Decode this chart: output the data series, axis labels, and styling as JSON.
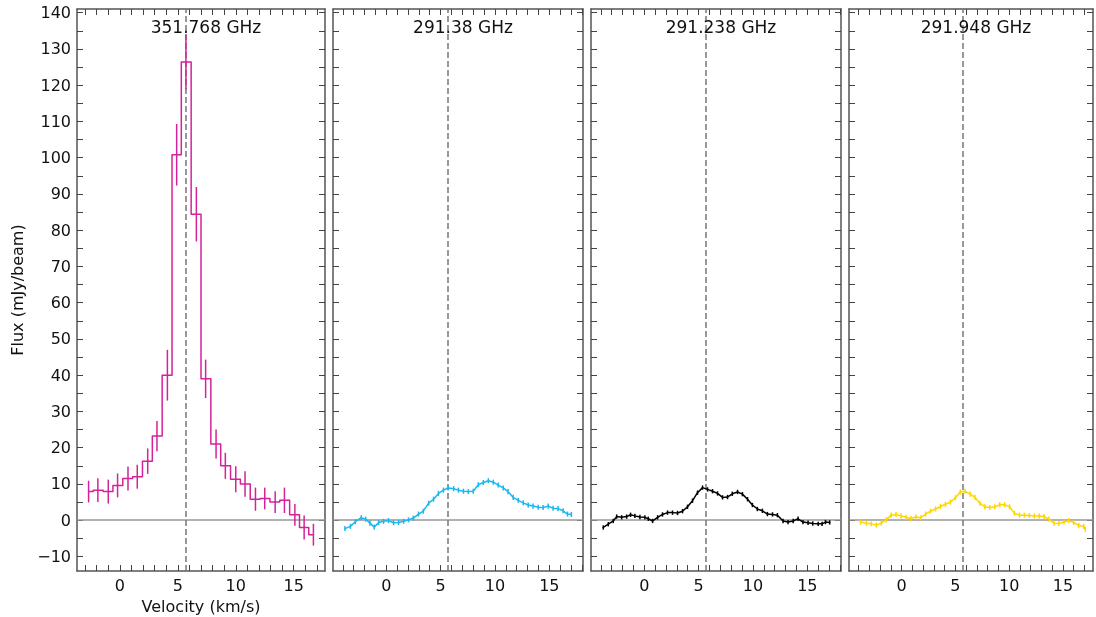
{
  "chart_data": [
    {
      "type": "step",
      "title": "351.768 GHz",
      "xlabel": "Velocity (km/s)",
      "ylabel": "Flux (mJy/beam)",
      "color": "#d4239a",
      "x": [
        -2.7,
        -1.9,
        -1.0,
        -0.2,
        0.7,
        1.5,
        2.4,
        3.2,
        4.1,
        4.9,
        5.7,
        6.6,
        7.4,
        8.3,
        9.1,
        10.0,
        10.8,
        11.7,
        12.5,
        13.4,
        14.2,
        15.1,
        15.9,
        16.7
      ],
      "values": [
        7.9,
        8.3,
        7.9,
        9.6,
        11.5,
        12,
        16.3,
        23.2,
        40,
        100.8,
        126.4,
        84.4,
        39,
        21,
        15,
        11.3,
        10,
        5.8,
        6,
        5,
        5.5,
        1.5,
        -2,
        -4
      ],
      "errors": [
        3,
        3.3,
        3.3,
        3.3,
        3.3,
        3.3,
        3.5,
        4.2,
        7,
        8.5,
        7.5,
        7.5,
        5.3,
        4,
        3.6,
        3.6,
        3.5,
        3.2,
        3,
        3,
        3.5,
        3,
        3.3,
        3
      ],
      "xlim": [
        -3.7,
        17.7
      ],
      "xticks": [
        {
          "value": -3,
          "label": null
        },
        {
          "value": -2,
          "label": null
        },
        {
          "value": -1,
          "label": null
        },
        0,
        {
          "value": 1,
          "label": null
        },
        {
          "value": 2,
          "label": null
        },
        {
          "value": 3,
          "label": null
        },
        {
          "value": 4,
          "label": null
        },
        5,
        {
          "value": 6,
          "label": null
        },
        {
          "value": 7,
          "label": null
        },
        {
          "value": 8,
          "label": null
        },
        {
          "value": 9,
          "label": null
        },
        10,
        {
          "value": 11,
          "label": null
        },
        {
          "value": 12,
          "label": null
        },
        {
          "value": 13,
          "label": null
        },
        {
          "value": 14,
          "label": null
        },
        15,
        {
          "value": 16,
          "label": null
        },
        {
          "value": 17,
          "label": null
        }
      ],
      "ylim": [
        -14,
        141
      ],
      "yticks": [
        {
          "value": -10,
          "label": "−10"
        },
        {
          "value": -5,
          "label": null
        },
        0,
        {
          "value": 5,
          "label": null
        },
        10,
        {
          "value": 15,
          "label": null
        },
        20,
        {
          "value": 25,
          "label": null
        },
        30,
        {
          "value": 35,
          "label": null
        },
        40,
        {
          "value": 45,
          "label": null
        },
        50,
        {
          "value": 55,
          "label": null
        },
        60,
        {
          "value": 65,
          "label": null
        },
        70,
        {
          "value": 75,
          "label": null
        },
        80,
        {
          "value": 85,
          "label": null
        },
        90,
        {
          "value": 95,
          "label": null
        },
        100,
        {
          "value": 105,
          "label": null
        },
        110,
        {
          "value": 115,
          "label": null
        },
        120,
        {
          "value": 125,
          "label": null
        },
        130,
        {
          "value": 135,
          "label": null
        },
        140
      ],
      "ref_lines": [
        {
          "axis": "y",
          "value": 0,
          "color": "#999999",
          "line_style": "solid"
        },
        {
          "axis": "x",
          "value": 5.7,
          "color": "#777777",
          "line_style": "dashed"
        }
      ]
    },
    {
      "type": "line",
      "title": "291.38 GHz",
      "color": "#1ab8f0",
      "tick_labels": "x",
      "x": [
        -3.8,
        -3.3,
        -2.85,
        -2.3,
        -1.9,
        -1.5,
        -1.1,
        -0.7,
        -0.25,
        0.2,
        0.67,
        1.13,
        1.6,
        2.05,
        2.5,
        2.97,
        3.4,
        3.9,
        4.35,
        4.8,
        5.26,
        5.7,
        6.2,
        6.64,
        7.1,
        7.55,
        8.0,
        8.47,
        8.93,
        9.39,
        9.85,
        10.3,
        10.76,
        11.2,
        11.68,
        12.14,
        12.6,
        13.06,
        13.5,
        13.98,
        14.43,
        14.9,
        15.35,
        15.8,
        16.27,
        16.67,
        17.03
      ],
      "values": [
        -2.3,
        -1.7,
        -0.4,
        0.7,
        0.3,
        -0.8,
        -1.9,
        -0.6,
        -0.3,
        -0.1,
        -0.7,
        -0.6,
        -0.3,
        0.1,
        0.6,
        1.7,
        2.5,
        4.7,
        5.8,
        7.4,
        8.3,
        8.9,
        8.7,
        8.3,
        8.0,
        7.9,
        8.0,
        9.8,
        10.4,
        10.9,
        10.5,
        9.7,
        8.9,
        7.9,
        6.3,
        5.5,
        4.8,
        4.2,
        3.9,
        3.6,
        3.5,
        3.9,
        3.3,
        3.2,
        2.6,
        1.7,
        1.6
      ],
      "errors": [
        0.7,
        0.7,
        0.7,
        0.7,
        0.7,
        0.7,
        0.7,
        0.7,
        0.7,
        0.7,
        0.7,
        0.7,
        0.7,
        0.7,
        0.7,
        0.7,
        0.7,
        0.7,
        0.7,
        0.7,
        0.7,
        0.7,
        0.7,
        0.7,
        0.7,
        0.7,
        0.7,
        0.7,
        0.7,
        0.7,
        0.7,
        0.7,
        0.7,
        0.7,
        0.7,
        0.7,
        0.7,
        0.7,
        0.7,
        0.7,
        0.7,
        0.7,
        0.7,
        0.7,
        0.7,
        0.7,
        0.7
      ],
      "xlim": [
        -4.9,
        18.1
      ],
      "xticks": [
        {
          "value": -4,
          "label": null
        },
        {
          "value": -3,
          "label": null
        },
        {
          "value": -2,
          "label": null
        },
        {
          "value": -1,
          "label": null
        },
        0,
        {
          "value": 1,
          "label": null
        },
        {
          "value": 2,
          "label": null
        },
        {
          "value": 3,
          "label": null
        },
        {
          "value": 4,
          "label": null
        },
        5,
        {
          "value": 6,
          "label": null
        },
        {
          "value": 7,
          "label": null
        },
        {
          "value": 8,
          "label": null
        },
        {
          "value": 9,
          "label": null
        },
        10,
        {
          "value": 11,
          "label": null
        },
        {
          "value": 12,
          "label": null
        },
        {
          "value": 13,
          "label": null
        },
        {
          "value": 14,
          "label": null
        },
        15,
        {
          "value": 16,
          "label": null
        },
        {
          "value": 17,
          "label": null
        },
        {
          "value": 18,
          "label": null
        }
      ],
      "ylim": [
        -14,
        141
      ],
      "yticks": [
        -10,
        {
          "value": -5,
          "label": null
        },
        0,
        {
          "value": 5,
          "label": null
        },
        10,
        {
          "value": 15,
          "label": null
        },
        20,
        {
          "value": 25,
          "label": null
        },
        30,
        {
          "value": 35,
          "label": null
        },
        40,
        {
          "value": 45,
          "label": null
        },
        50,
        {
          "value": 55,
          "label": null
        },
        60,
        {
          "value": 65,
          "label": null
        },
        70,
        {
          "value": 75,
          "label": null
        },
        80,
        {
          "value": 85,
          "label": null
        },
        90,
        {
          "value": 95,
          "label": null
        },
        100,
        {
          "value": 105,
          "label": null
        },
        110,
        {
          "value": 115,
          "label": null
        },
        120,
        {
          "value": 125,
          "label": null
        },
        130,
        {
          "value": 135,
          "label": null
        },
        140
      ],
      "ref_lines": [
        {
          "axis": "y",
          "value": 0,
          "color": "#999999",
          "line_style": "solid"
        },
        {
          "axis": "x",
          "value": 5.7,
          "color": "#777777",
          "line_style": "dashed"
        }
      ]
    },
    {
      "type": "line",
      "title": "291.238 GHz",
      "color": "#000000",
      "tick_labels": "x",
      "x": [
        -3.77,
        -3.31,
        -2.85,
        -2.54,
        -2.08,
        -1.62,
        -1.26,
        -0.86,
        -0.4,
        0.06,
        0.37,
        0.77,
        1.23,
        1.68,
        2.14,
        2.6,
        3.06,
        3.52,
        3.98,
        4.44,
        4.9,
        5.36,
        5.82,
        6.28,
        6.74,
        7.2,
        7.66,
        8.1,
        8.58,
        9.03,
        9.5,
        9.95,
        10.4,
        10.87,
        11.33,
        11.8,
        12.25,
        12.77,
        13.23,
        13.7,
        14.15,
        14.6,
        15.07,
        15.5,
        16.0,
        16.36,
        16.67,
        17.06
      ],
      "values": [
        -2.0,
        -1.1,
        -0.2,
        1.0,
        0.8,
        1.0,
        1.5,
        1.2,
        0.9,
        0.8,
        0.4,
        -0.2,
        0.8,
        1.6,
        2.1,
        2.1,
        2.0,
        2.5,
        3.7,
        5.4,
        7.6,
        9.0,
        8.5,
        8.0,
        7.4,
        6.3,
        6.4,
        7.3,
        7.8,
        7.2,
        5.8,
        4.2,
        3.1,
        2.6,
        1.7,
        1.6,
        1.4,
        -0.2,
        -0.5,
        -0.2,
        0.4,
        -0.5,
        -0.7,
        -0.9,
        -1.0,
        -1.0,
        -0.5,
        -0.6
      ],
      "errors": [
        0.6,
        0.6,
        0.6,
        0.6,
        0.6,
        0.6,
        0.6,
        0.6,
        0.6,
        0.6,
        0.6,
        0.6,
        0.6,
        0.6,
        0.6,
        0.6,
        0.6,
        0.6,
        0.6,
        0.6,
        0.6,
        0.6,
        0.6,
        0.6,
        0.6,
        0.6,
        0.6,
        0.6,
        0.6,
        0.6,
        0.6,
        0.6,
        0.6,
        0.6,
        0.6,
        0.6,
        0.6,
        0.6,
        0.6,
        0.6,
        0.6,
        0.6,
        0.6,
        0.6,
        0.6,
        0.6,
        0.6,
        0.6
      ],
      "xlim": [
        -4.9,
        18.1
      ],
      "xticks": [
        {
          "value": -4,
          "label": null
        },
        {
          "value": -3,
          "label": null
        },
        {
          "value": -2,
          "label": null
        },
        {
          "value": -1,
          "label": null
        },
        0,
        {
          "value": 1,
          "label": null
        },
        {
          "value": 2,
          "label": null
        },
        {
          "value": 3,
          "label": null
        },
        {
          "value": 4,
          "label": null
        },
        5,
        {
          "value": 6,
          "label": null
        },
        {
          "value": 7,
          "label": null
        },
        {
          "value": 8,
          "label": null
        },
        {
          "value": 9,
          "label": null
        },
        10,
        {
          "value": 11,
          "label": null
        },
        {
          "value": 12,
          "label": null
        },
        {
          "value": 13,
          "label": null
        },
        {
          "value": 14,
          "label": null
        },
        15,
        {
          "value": 16,
          "label": null
        },
        {
          "value": 17,
          "label": null
        },
        {
          "value": 18,
          "label": null
        }
      ],
      "ylim": [
        -14,
        141
      ],
      "yticks": [
        -10,
        {
          "value": -5,
          "label": null
        },
        0,
        {
          "value": 5,
          "label": null
        },
        10,
        {
          "value": 15,
          "label": null
        },
        20,
        {
          "value": 25,
          "label": null
        },
        30,
        {
          "value": 35,
          "label": null
        },
        40,
        {
          "value": 45,
          "label": null
        },
        50,
        {
          "value": 55,
          "label": null
        },
        60,
        {
          "value": 65,
          "label": null
        },
        70,
        {
          "value": 75,
          "label": null
        },
        80,
        {
          "value": 85,
          "label": null
        },
        90,
        {
          "value": 95,
          "label": null
        },
        100,
        {
          "value": 105,
          "label": null
        },
        110,
        {
          "value": 115,
          "label": null
        },
        120,
        {
          "value": 125,
          "label": null
        },
        130,
        {
          "value": 135,
          "label": null
        },
        140
      ],
      "ref_lines": [
        {
          "axis": "y",
          "value": 0,
          "color": "#999999",
          "line_style": "solid"
        },
        {
          "axis": "x",
          "value": 5.7,
          "color": "#777777",
          "line_style": "dashed"
        }
      ]
    },
    {
      "type": "line",
      "title": "291.948 GHz",
      "color": "#ffd700",
      "tick_labels": "x",
      "x": [
        -3.83,
        -3.28,
        -2.82,
        -2.36,
        -1.9,
        -1.44,
        -0.98,
        -0.52,
        -0.06,
        0.4,
        0.86,
        1.32,
        1.78,
        2.23,
        2.69,
        3.15,
        3.61,
        4.07,
        4.53,
        5.0,
        5.45,
        5.9,
        6.37,
        6.82,
        7.28,
        7.74,
        8.2,
        8.66,
        9.12,
        9.58,
        10.04,
        10.5,
        10.96,
        11.42,
        11.88,
        12.34,
        12.8,
        13.25,
        13.7,
        14.17,
        14.63,
        15.1,
        15.55,
        16.0,
        16.47,
        16.93,
        17.08
      ],
      "values": [
        -0.5,
        -0.8,
        -1.0,
        -1.3,
        -0.8,
        0.1,
        1.4,
        1.6,
        1.2,
        0.8,
        0.5,
        0.9,
        0.7,
        1.7,
        2.5,
        3.1,
        3.8,
        4.4,
        5.0,
        6.2,
        7.8,
        8.0,
        7.2,
        6.3,
        4.7,
        3.7,
        3.5,
        3.7,
        4.3,
        4.3,
        3.7,
        1.9,
        1.4,
        1.4,
        1.3,
        1.2,
        1.2,
        1.0,
        0.3,
        -0.8,
        -0.9,
        -0.5,
        -0.1,
        -0.6,
        -1.4,
        -1.7,
        -2.5
      ],
      "errors": [
        0.7,
        0.7,
        0.7,
        0.7,
        0.7,
        0.7,
        0.7,
        0.7,
        0.7,
        0.7,
        0.7,
        0.7,
        0.7,
        0.7,
        0.7,
        0.7,
        0.7,
        0.7,
        0.7,
        0.7,
        0.7,
        0.7,
        0.7,
        0.7,
        0.7,
        0.7,
        0.7,
        0.7,
        0.7,
        0.7,
        0.7,
        0.7,
        0.7,
        0.7,
        0.7,
        0.7,
        0.7,
        0.7,
        0.7,
        0.7,
        0.7,
        0.7,
        0.7,
        0.7,
        0.7,
        0.7,
        0.7
      ],
      "xlim": [
        -4.9,
        17.8
      ],
      "xticks": [
        {
          "value": -4,
          "label": null
        },
        {
          "value": -3,
          "label": null
        },
        {
          "value": -2,
          "label": null
        },
        {
          "value": -1,
          "label": null
        },
        0,
        {
          "value": 1,
          "label": null
        },
        {
          "value": 2,
          "label": null
        },
        {
          "value": 3,
          "label": null
        },
        {
          "value": 4,
          "label": null
        },
        5,
        {
          "value": 6,
          "label": null
        },
        {
          "value": 7,
          "label": null
        },
        {
          "value": 8,
          "label": null
        },
        {
          "value": 9,
          "label": null
        },
        10,
        {
          "value": 11,
          "label": null
        },
        {
          "value": 12,
          "label": null
        },
        {
          "value": 13,
          "label": null
        },
        {
          "value": 14,
          "label": null
        },
        15,
        {
          "value": 16,
          "label": null
        },
        {
          "value": 17,
          "label": null
        }
      ],
      "ylim": [
        -14,
        141
      ],
      "yticks": [
        -10,
        {
          "value": -5,
          "label": null
        },
        0,
        {
          "value": 5,
          "label": null
        },
        10,
        {
          "value": 15,
          "label": null
        },
        20,
        {
          "value": 25,
          "label": null
        },
        30,
        {
          "value": 35,
          "label": null
        },
        40,
        {
          "value": 45,
          "label": null
        },
        50,
        {
          "value": 55,
          "label": null
        },
        60,
        {
          "value": 65,
          "label": null
        },
        70,
        {
          "value": 75,
          "label": null
        },
        80,
        {
          "value": 85,
          "label": null
        },
        90,
        {
          "value": 95,
          "label": null
        },
        100,
        {
          "value": 105,
          "label": null
        },
        110,
        {
          "value": 115,
          "label": null
        },
        120,
        {
          "value": 125,
          "label": null
        },
        130,
        {
          "value": 135,
          "label": null
        },
        140
      ],
      "ref_lines": [
        {
          "axis": "y",
          "value": 0,
          "color": "#999999",
          "line_style": "solid"
        },
        {
          "axis": "x",
          "value": 5.7,
          "color": "#777777",
          "line_style": "dashed"
        }
      ]
    }
  ]
}
